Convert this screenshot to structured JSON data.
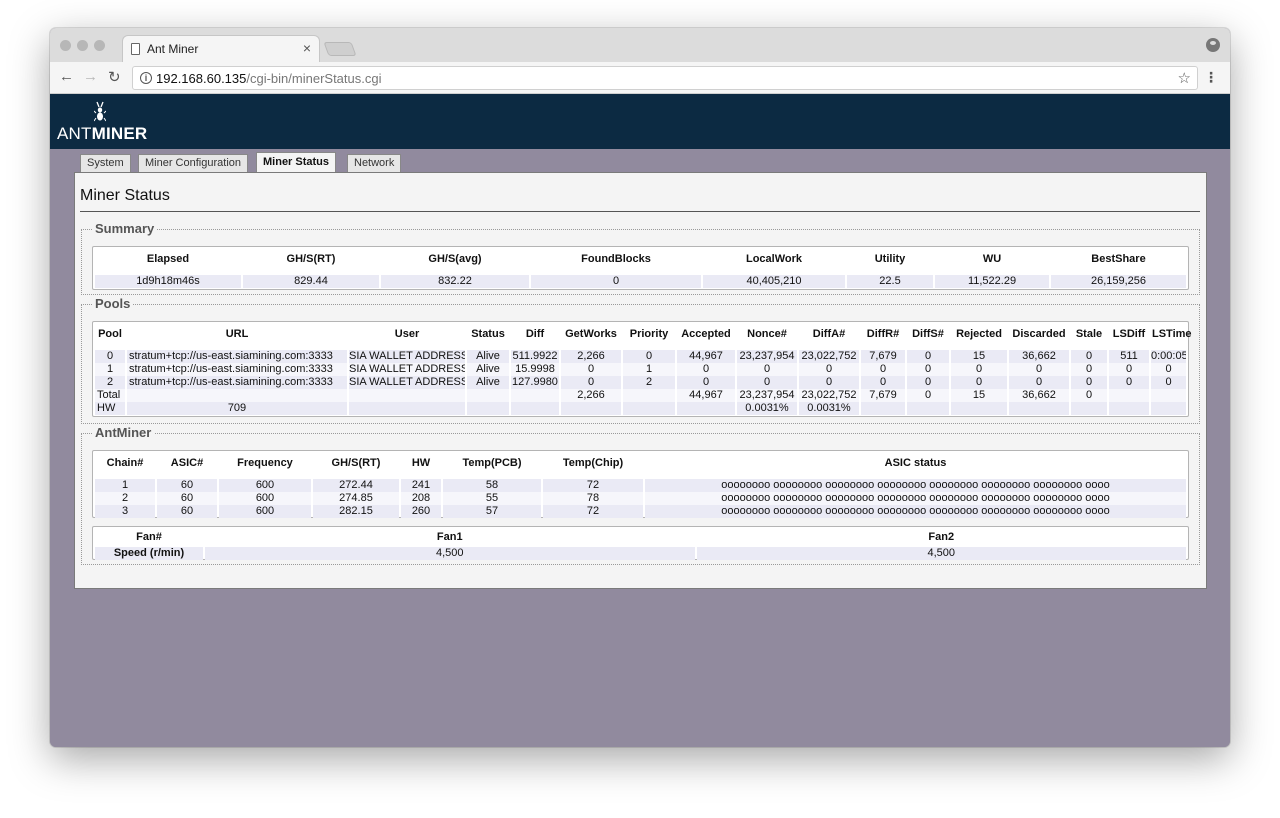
{
  "browser": {
    "tab_title": "Ant Miner",
    "tab_close": "×",
    "url_host": "192.168.60.135",
    "url_path": "/cgi-bin/minerStatus.cgi",
    "nav": {
      "back": "←",
      "forward": "→",
      "reload": "↻"
    },
    "star": "☆",
    "menu": "⋮",
    "info": "i"
  },
  "logo": {
    "light": "ANT",
    "bold": "MINER"
  },
  "nav_tabs": [
    "System",
    "Miner Configuration",
    "Miner Status",
    "Network"
  ],
  "active_tab": "Miner Status",
  "page_title": "Miner Status",
  "summary": {
    "legend": "Summary",
    "headers": [
      "Elapsed",
      "GH/S(RT)",
      "GH/S(avg)",
      "FoundBlocks",
      "LocalWork",
      "Utility",
      "WU",
      "BestShare"
    ],
    "row": [
      "1d9h18m46s",
      "829.44",
      "832.22",
      "0",
      "40,405,210",
      "22.5",
      "11,522.29",
      "26,159,256"
    ]
  },
  "pools": {
    "legend": "Pools",
    "headers": [
      "Pool",
      "URL",
      "User",
      "Status",
      "Diff",
      "GetWorks",
      "Priority",
      "Accepted",
      "Nonce#",
      "DiffA#",
      "DiffR#",
      "DiffS#",
      "Rejected",
      "Discarded",
      "Stale",
      "LSDiff",
      "LSTime"
    ],
    "rows": [
      [
        "0",
        "stratum+tcp://us-east.siamining.com:3333",
        "SIA WALLET ADDRESS",
        "Alive",
        "511.9922",
        "2,266",
        "0",
        "44,967",
        "23,237,954",
        "23,022,752",
        "7,679",
        "0",
        "15",
        "36,662",
        "0",
        "511",
        "0:00:05"
      ],
      [
        "1",
        "stratum+tcp://us-east.siamining.com:3333",
        "SIA WALLET ADDRESS",
        "Alive",
        "15.9998",
        "0",
        "1",
        "0",
        "0",
        "0",
        "0",
        "0",
        "0",
        "0",
        "0",
        "0",
        "0"
      ],
      [
        "2",
        "stratum+tcp://us-east.siamining.com:3333",
        "SIA WALLET ADDRESS",
        "Alive",
        "127.9980",
        "0",
        "2",
        "0",
        "0",
        "0",
        "0",
        "0",
        "0",
        "0",
        "0",
        "0",
        "0"
      ],
      [
        "Total",
        "",
        "",
        "",
        "",
        "2,266",
        "",
        "44,967",
        "23,237,954",
        "23,022,752",
        "7,679",
        "0",
        "15",
        "36,662",
        "0",
        "",
        ""
      ],
      [
        "HW",
        "709",
        "",
        "",
        "",
        "",
        "",
        "",
        "0.0031%",
        "0.0031%",
        "",
        "",
        "",
        "",
        "",
        "",
        ""
      ]
    ]
  },
  "antminer": {
    "legend": "AntMiner",
    "headers": [
      "Chain#",
      "ASIC#",
      "Frequency",
      "GH/S(RT)",
      "HW",
      "Temp(PCB)",
      "Temp(Chip)",
      "ASIC status"
    ],
    "rows": [
      [
        "1",
        "60",
        "600",
        "272.44",
        "241",
        "58",
        "72",
        "oooooooo oooooooo oooooooo oooooooo oooooooo oooooooo oooooooo oooo"
      ],
      [
        "2",
        "60",
        "600",
        "274.85",
        "208",
        "55",
        "78",
        "oooooooo oooooooo oooooooo oooooooo oooooooo oooooooo oooooooo oooo"
      ],
      [
        "3",
        "60",
        "600",
        "282.15",
        "260",
        "57",
        "72",
        "oooooooo oooooooo oooooooo oooooooo oooooooo oooooooo oooooooo oooo"
      ]
    ],
    "fan_headers": [
      "Fan#",
      "Fan1",
      "Fan2"
    ],
    "fan_row": [
      "Speed (r/min)",
      "4,500",
      "4,500"
    ]
  }
}
